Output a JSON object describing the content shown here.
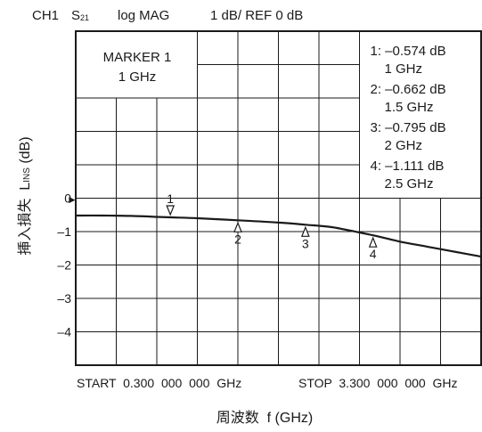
{
  "header": {
    "channel": "CH1",
    "param_main": "S",
    "param_sub": "21",
    "format": "log MAG",
    "scale": "1 dB/ REF 0 dB"
  },
  "marker_box": {
    "line1": "MARKER 1",
    "line2": "1 GHz"
  },
  "marker_list": [
    {
      "label": "1:",
      "value": "–0.574 dB",
      "freq": "1 GHz"
    },
    {
      "label": "2:",
      "value": "–0.662 dB",
      "freq": "1.5 GHz"
    },
    {
      "label": "3:",
      "value": "–0.795 dB",
      "freq": "2 GHz"
    },
    {
      "label": "4:",
      "value": "–1.111 dB",
      "freq": "2.5 GHz"
    }
  ],
  "footer": {
    "start": "START  0.300  000  000  GHz",
    "stop": "STOP  3.300  000  000  GHz"
  },
  "ylabel": {
    "main": "挿入損失  L",
    "sub": "INS",
    "unit": " (dB)"
  },
  "xlabel": "周波数  f (GHz)",
  "ref_marker": "►",
  "chart_data": {
    "type": "line",
    "xlim": [
      0.3,
      3.3
    ],
    "ylim": [
      -5,
      5
    ],
    "y_tick_labels": [
      {
        "value": 0,
        "label": "0"
      },
      {
        "value": -1,
        "label": "–1"
      },
      {
        "value": -2,
        "label": "–2"
      },
      {
        "value": -3,
        "label": "–3"
      },
      {
        "value": -4,
        "label": "–4"
      }
    ],
    "grid": true,
    "series": [
      {
        "x": [
          0.3,
          0.5,
          0.7,
          0.9,
          1.0,
          1.2,
          1.5,
          1.8,
          2.0,
          2.2,
          2.5,
          2.7,
          2.9,
          3.1,
          3.3
        ],
        "y": [
          -0.52,
          -0.52,
          -0.53,
          -0.56,
          -0.574,
          -0.6,
          -0.662,
          -0.73,
          -0.795,
          -0.87,
          -1.111,
          -1.3,
          -1.45,
          -1.6,
          -1.75
        ]
      }
    ],
    "markers": [
      {
        "id": "1",
        "x": 1.0,
        "y": -0.574
      },
      {
        "id": "2",
        "x": 1.5,
        "y": -0.662
      },
      {
        "id": "3",
        "x": 2.0,
        "y": -0.795
      },
      {
        "id": "4",
        "x": 2.5,
        "y": -1.111
      }
    ]
  }
}
